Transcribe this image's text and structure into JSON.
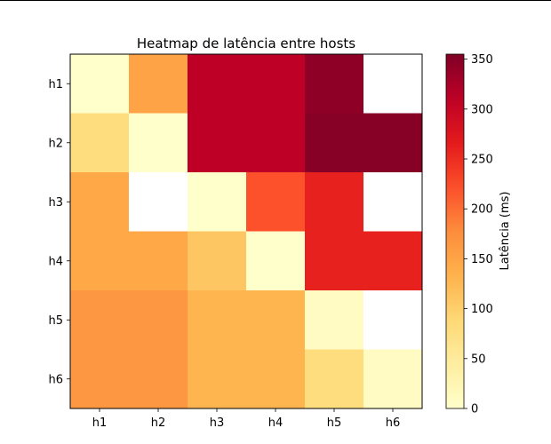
{
  "chart_data": {
    "type": "heatmap",
    "title": "Heatmap de latência entre hosts",
    "xlabel": "",
    "ylabel": "",
    "x_categories": [
      "h1",
      "h2",
      "h3",
      "h4",
      "h5",
      "h6"
    ],
    "y_categories": [
      "h1",
      "h2",
      "h3",
      "h4",
      "h5",
      "h6"
    ],
    "values": [
      [
        0,
        150,
        310,
        310,
        345,
        null
      ],
      [
        80,
        0,
        310,
        310,
        350,
        350
      ],
      [
        145,
        null,
        0,
        220,
        260,
        null
      ],
      [
        145,
        145,
        110,
        0,
        260,
        260
      ],
      [
        165,
        165,
        130,
        130,
        10,
        null
      ],
      [
        165,
        165,
        130,
        130,
        80,
        10
      ]
    ],
    "missing_color": "#ffffff",
    "colormap": "YlOrRd",
    "colorbar": {
      "label": "Latência (ms)",
      "range": [
        0,
        355
      ],
      "ticks": [
        0,
        50,
        100,
        150,
        200,
        250,
        300,
        350
      ]
    }
  }
}
